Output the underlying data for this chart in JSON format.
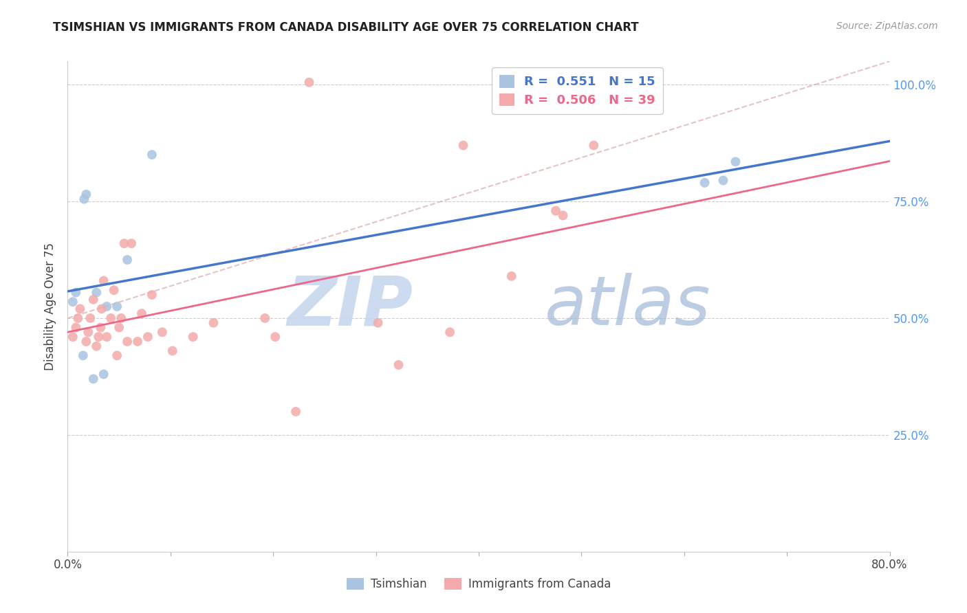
{
  "title": "TSIMSHIAN VS IMMIGRANTS FROM CANADA DISABILITY AGE OVER 75 CORRELATION CHART",
  "source": "Source: ZipAtlas.com",
  "ylabel": "Disability Age Over 75",
  "xmin": 0.0,
  "xmax": 0.8,
  "ymin": 0.0,
  "ymax": 1.05,
  "y_ticks": [
    0.0,
    0.25,
    0.5,
    0.75,
    1.0
  ],
  "y_tick_labels_right": [
    "",
    "25.0%",
    "50.0%",
    "75.0%",
    "100.0%"
  ],
  "legend_blue_r": "0.551",
  "legend_blue_n": "15",
  "legend_pink_r": "0.506",
  "legend_pink_n": "39",
  "legend_label_blue": "Tsimshian",
  "legend_label_pink": "Immigrants from Canada",
  "watermark_zip": "ZIP",
  "watermark_atlas": "atlas",
  "blue_scatter_x": [
    0.005,
    0.008,
    0.015,
    0.016,
    0.018,
    0.025,
    0.028,
    0.035,
    0.038,
    0.048,
    0.058,
    0.082,
    0.62,
    0.638,
    0.65
  ],
  "blue_scatter_y": [
    0.535,
    0.555,
    0.42,
    0.755,
    0.765,
    0.37,
    0.555,
    0.38,
    0.525,
    0.525,
    0.625,
    0.85,
    0.79,
    0.795,
    0.835
  ],
  "pink_scatter_x": [
    0.005,
    0.008,
    0.01,
    0.012,
    0.018,
    0.02,
    0.022,
    0.025,
    0.028,
    0.03,
    0.032,
    0.033,
    0.035,
    0.038,
    0.042,
    0.045,
    0.048,
    0.05,
    0.052,
    0.055,
    0.058,
    0.062,
    0.068,
    0.072,
    0.078,
    0.082,
    0.092,
    0.102,
    0.122,
    0.142,
    0.192,
    0.202,
    0.222,
    0.302,
    0.322,
    0.372,
    0.432,
    0.482,
    0.512
  ],
  "pink_scatter_y": [
    0.46,
    0.48,
    0.5,
    0.52,
    0.45,
    0.47,
    0.5,
    0.54,
    0.44,
    0.46,
    0.48,
    0.52,
    0.58,
    0.46,
    0.5,
    0.56,
    0.42,
    0.48,
    0.5,
    0.66,
    0.45,
    0.66,
    0.45,
    0.51,
    0.46,
    0.55,
    0.47,
    0.43,
    0.46,
    0.49,
    0.5,
    0.46,
    0.3,
    0.49,
    0.4,
    0.47,
    0.59,
    0.72,
    0.87
  ],
  "pink_top_scatter_x": [
    0.235
  ],
  "pink_top_scatter_y": [
    1.005
  ],
  "pink_high_scatter_x": [
    0.385,
    0.475
  ],
  "pink_high_scatter_y": [
    0.87,
    0.73
  ],
  "scatter_size": 100,
  "blue_color": "#A8C4E0",
  "pink_color": "#F4AAAA",
  "blue_line_color": "#4477CC",
  "pink_line_color": "#EE6688",
  "pink_dashed_color": "#DDAAAA",
  "right_axis_color": "#5599EE",
  "background_color": "#FFFFFF",
  "grid_color": "#CCCCCC"
}
